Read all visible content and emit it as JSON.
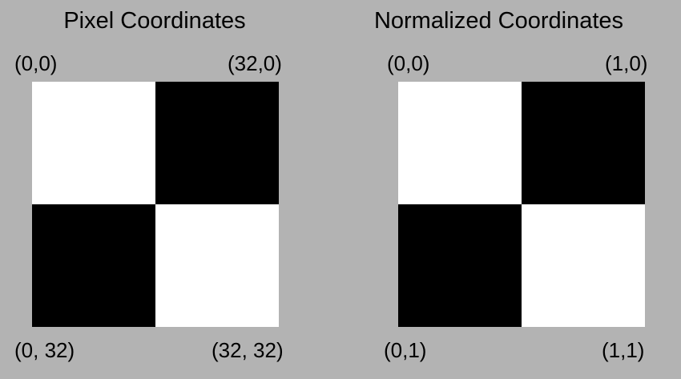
{
  "colors": {
    "background": "#b3b3b3",
    "light_cell": "#ffffff",
    "dark_cell": "#000000"
  },
  "pixel_panel": {
    "title": "Pixel Coordinates",
    "top_left": "(0,0)",
    "top_right": "(32,0)",
    "bottom_left": "(0, 32)",
    "bottom_right": "(32, 32)"
  },
  "normalized_panel": {
    "title": "Normalized Coordinates",
    "top_left": "(0,0)",
    "top_right": "(1,0)",
    "bottom_left": "(0,1)",
    "bottom_right": "(1,1)"
  }
}
